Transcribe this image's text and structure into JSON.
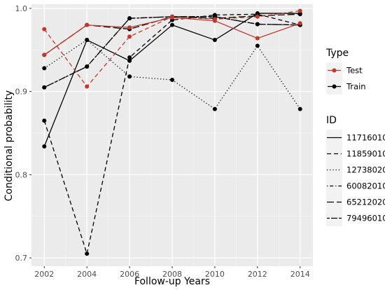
{
  "chart_data": {
    "type": "line",
    "title": "",
    "xlabel": "Follow-up Years",
    "ylabel": "Conditional probability",
    "x_ticks": [
      2002,
      2004,
      2006,
      2008,
      2010,
      2012,
      2014
    ],
    "y_ticks": [
      0.7,
      0.8,
      0.9,
      1.0
    ],
    "y_tick_labels": [
      "0.7",
      "0.8",
      "0.9",
      "1.0"
    ],
    "xlim": [
      2001.4,
      2014.6
    ],
    "ylim": [
      0.69,
      1.005
    ],
    "grid": true,
    "panel_background": "#ebebeb",
    "legend_placement": "right",
    "type_legend": {
      "title": "Type",
      "entries": [
        {
          "name": "Test",
          "color": "#c0392b"
        },
        {
          "name": "Train",
          "color": "#000000"
        }
      ]
    },
    "id_legend": {
      "title": "ID",
      "entries": [
        {
          "name": "11716010",
          "dash": "solid"
        },
        {
          "name": "11859010",
          "dash": "dashed"
        },
        {
          "name": "12738020",
          "dash": "dotted"
        },
        {
          "name": "60082010",
          "dash": "dotdash"
        },
        {
          "name": "65212020",
          "dash": "longdash"
        },
        {
          "name": "79496010",
          "dash": "twodash"
        }
      ]
    },
    "series": [
      {
        "type": "Train",
        "id": "11716010",
        "x": [
          2002,
          2004,
          2006,
          2008,
          2010,
          2012,
          2014
        ],
        "y": [
          0.834,
          0.962,
          0.937,
          0.98,
          0.962,
          0.994,
          0.994
        ]
      },
      {
        "type": "Train",
        "id": "11859010",
        "x": [
          2002,
          2004,
          2006,
          2008,
          2010,
          2012,
          2014
        ],
        "y": [
          0.865,
          0.705,
          0.941,
          0.986,
          0.992,
          0.993,
          0.98
        ]
      },
      {
        "type": "Train",
        "id": "12738020",
        "x": [
          2002,
          2004,
          2006,
          2008,
          2010,
          2012,
          2014
        ],
        "y": [
          0.928,
          0.962,
          0.918,
          0.914,
          0.879,
          0.955,
          0.879
        ]
      },
      {
        "type": "Train",
        "id": "60082010",
        "x": [
          2002,
          2004,
          2006,
          2008,
          2010,
          2012,
          2014
        ],
        "y": [
          0.905,
          0.93,
          0.988,
          0.99,
          0.99,
          0.981,
          0.98
        ]
      },
      {
        "type": "Train",
        "id": "65212020",
        "x": [
          2002,
          2004,
          2006,
          2008,
          2010,
          2012,
          2014
        ],
        "y": [
          0.944,
          0.98,
          0.975,
          0.99,
          0.988,
          0.991,
          0.993
        ]
      },
      {
        "type": "Train",
        "id": "79496010",
        "x": [
          2002,
          2004,
          2006,
          2008,
          2010,
          2012,
          2014
        ],
        "y": [
          0.905,
          0.93,
          0.988,
          0.99,
          0.99,
          0.981,
          0.98
        ]
      },
      {
        "type": "Test",
        "id": "11716010",
        "x": [
          2002,
          2004,
          2006,
          2008,
          2010,
          2012,
          2014
        ],
        "y": [
          0.944,
          0.98,
          0.977,
          0.989,
          0.985,
          0.964,
          0.982
        ]
      },
      {
        "type": "Test",
        "id": "11859010",
        "x": [
          2002,
          2004,
          2006,
          2008,
          2010,
          2012,
          2014
        ],
        "y": [
          0.975,
          0.906,
          0.966,
          0.99,
          0.987,
          0.99,
          0.997
        ]
      }
    ]
  }
}
